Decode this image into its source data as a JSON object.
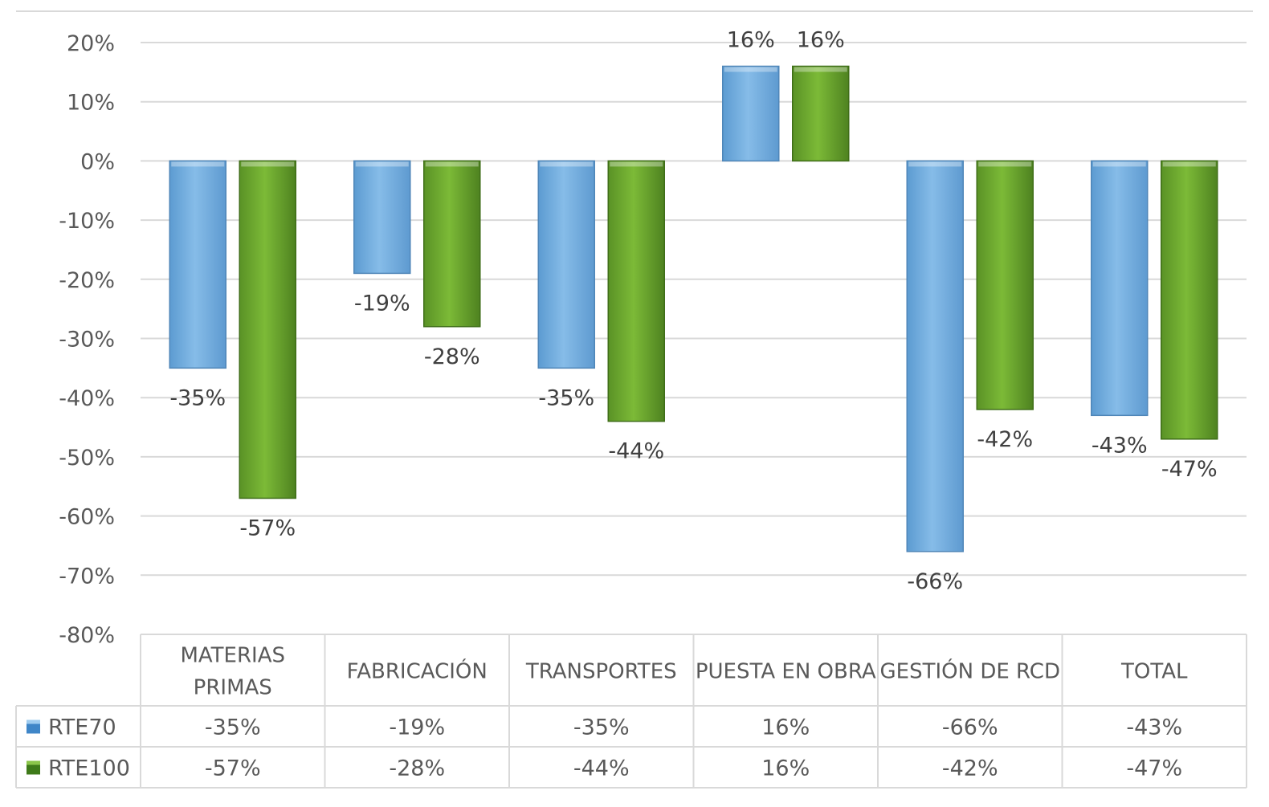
{
  "chart_data": {
    "type": "bar",
    "categories": [
      "MATERIAS PRIMAS",
      "FABRICACIÓN",
      "TRANSPORTES",
      "PUESTA EN OBRA",
      "GESTIÓN DE RCD",
      "TOTAL"
    ],
    "series": [
      {
        "name": "RTE70",
        "values": [
          -35,
          -19,
          -35,
          16,
          -66,
          -43
        ],
        "labels": [
          "-35%",
          "-19%",
          "-35%",
          "16%",
          "-66%",
          "-43%"
        ],
        "color": "#7AB3E3"
      },
      {
        "name": "RTE100",
        "values": [
          -57,
          -28,
          -44,
          16,
          -42,
          -47
        ],
        "labels": [
          "-57%",
          "-28%",
          "-44%",
          "16%",
          "-42%",
          "-47%"
        ],
        "color": "#70AD2E"
      }
    ],
    "ylim": [
      -80,
      20
    ],
    "yticks": [
      20,
      10,
      0,
      -10,
      -20,
      -30,
      -40,
      -50,
      -60,
      -70,
      -80
    ],
    "ytick_labels": [
      "20%",
      "10%",
      "0%",
      "-10%",
      "-20%",
      "-30%",
      "-40%",
      "-50%",
      "-60%",
      "-70%",
      "-80%"
    ],
    "grid": true,
    "data_table": true,
    "legend": "data-table"
  }
}
